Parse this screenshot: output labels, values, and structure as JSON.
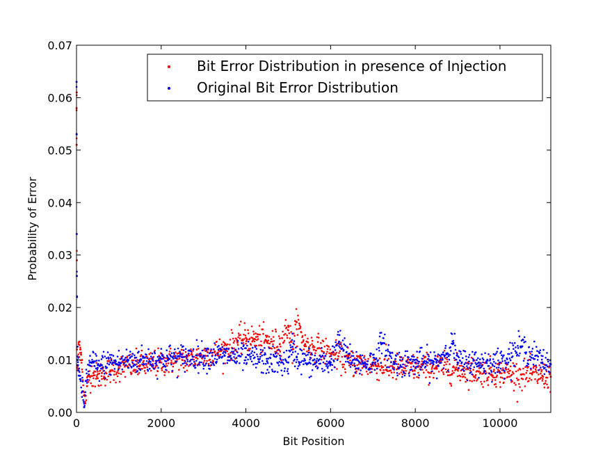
{
  "chart_data": {
    "type": "scatter",
    "title": "",
    "xlabel": "Bit Position",
    "ylabel": "Probability of Error",
    "xlim": [
      0,
      11200
    ],
    "ylim": [
      0,
      0.07
    ],
    "xticks": [
      0,
      2000,
      4000,
      6000,
      8000,
      10000
    ],
    "xtick_labels": [
      "0",
      "2000",
      "4000",
      "6000",
      "8000",
      "10000"
    ],
    "yticks": [
      0,
      0.01,
      0.02,
      0.03,
      0.04,
      0.05,
      0.06,
      0.07
    ],
    "ytick_labels": [
      "0.00",
      "0.01",
      "0.02",
      "0.03",
      "0.04",
      "0.05",
      "0.06",
      "0.07"
    ],
    "grid": false,
    "legend_position": "top-right",
    "series": [
      {
        "name": "Bit Error Distribution in presence of Injection",
        "color": "#ff0000",
        "points": [
          [
            1,
            0.058
          ],
          [
            3,
            0.051
          ],
          [
            5,
            0.061
          ],
          [
            8,
            0.029
          ],
          [
            12,
            0.012
          ],
          [
            20,
            0.009
          ],
          [
            35,
            0.008
          ],
          [
            50,
            0.013
          ],
          [
            70,
            0.0135
          ],
          [
            90,
            0.012
          ],
          [
            110,
            0.011
          ],
          [
            130,
            0.01
          ],
          [
            160,
            0.004
          ],
          [
            200,
            0.002
          ],
          [
            250,
            0.005
          ],
          [
            300,
            0.007
          ],
          [
            400,
            0.0075
          ],
          [
            500,
            0.0065
          ],
          [
            600,
            0.0075
          ],
          [
            800,
            0.008
          ],
          [
            1000,
            0.0085
          ],
          [
            1200,
            0.0088
          ],
          [
            1500,
            0.009
          ],
          [
            1800,
            0.0092
          ],
          [
            2000,
            0.0095
          ],
          [
            2500,
            0.01
          ],
          [
            3000,
            0.0108
          ],
          [
            3500,
            0.012
          ],
          [
            3800,
            0.0135
          ],
          [
            4000,
            0.0142
          ],
          [
            4200,
            0.014
          ],
          [
            4500,
            0.0135
          ],
          [
            4800,
            0.013
          ],
          [
            5000,
            0.0165
          ],
          [
            5100,
            0.012
          ],
          [
            5200,
            0.0172
          ],
          [
            5400,
            0.013
          ],
          [
            5700,
            0.0122
          ],
          [
            6000,
            0.0112
          ],
          [
            6500,
            0.0095
          ],
          [
            7000,
            0.009
          ],
          [
            7500,
            0.0085
          ],
          [
            8000,
            0.0085
          ],
          [
            8500,
            0.0088
          ],
          [
            9000,
            0.0082
          ],
          [
            9500,
            0.0078
          ],
          [
            10000,
            0.0075
          ],
          [
            10500,
            0.0072
          ],
          [
            11000,
            0.007
          ],
          [
            11200,
            0.0068
          ]
        ]
      },
      {
        "name": "Original Bit Error Distribution",
        "color": "#0000ff",
        "points": [
          [
            1,
            0.063
          ],
          [
            3,
            0.053
          ],
          [
            5,
            0.034
          ],
          [
            8,
            0.026
          ],
          [
            12,
            0.022
          ],
          [
            20,
            0.01
          ],
          [
            35,
            0.009
          ],
          [
            50,
            0.008
          ],
          [
            70,
            0.007
          ],
          [
            100,
            0.006
          ],
          [
            140,
            0.004
          ],
          [
            180,
            0.001
          ],
          [
            220,
            0.006
          ],
          [
            300,
            0.009
          ],
          [
            400,
            0.0095
          ],
          [
            500,
            0.0085
          ],
          [
            600,
            0.009
          ],
          [
            800,
            0.0095
          ],
          [
            1000,
            0.0095
          ],
          [
            1200,
            0.0098
          ],
          [
            1500,
            0.01
          ],
          [
            1800,
            0.01
          ],
          [
            2000,
            0.0102
          ],
          [
            2500,
            0.0105
          ],
          [
            3000,
            0.0108
          ],
          [
            3500,
            0.0108
          ],
          [
            4000,
            0.0105
          ],
          [
            4500,
            0.0098
          ],
          [
            5000,
            0.0095
          ],
          [
            5100,
            0.0125
          ],
          [
            5200,
            0.0105
          ],
          [
            5500,
            0.0095
          ],
          [
            6000,
            0.0095
          ],
          [
            6200,
            0.0135
          ],
          [
            6500,
            0.0095
          ],
          [
            7000,
            0.0095
          ],
          [
            7200,
            0.013
          ],
          [
            7500,
            0.0095
          ],
          [
            8000,
            0.0095
          ],
          [
            8500,
            0.0095
          ],
          [
            8900,
            0.0132
          ],
          [
            9000,
            0.0095
          ],
          [
            9500,
            0.0095
          ],
          [
            10000,
            0.0095
          ],
          [
            10500,
            0.0125
          ],
          [
            11000,
            0.0095
          ],
          [
            11200,
            0.0092
          ]
        ]
      }
    ]
  }
}
